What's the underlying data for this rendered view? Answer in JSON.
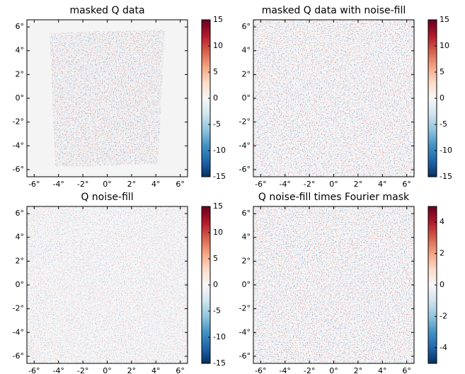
{
  "chart_data": [
    {
      "type": "heatmap",
      "title": "masked Q data",
      "xlim": [
        -6.6,
        6.6
      ],
      "ylim": [
        -6.6,
        6.6
      ],
      "xticks": [
        {
          "value": -6,
          "label": "-6°"
        },
        {
          "value": -4,
          "label": "-4°"
        },
        {
          "value": -2,
          "label": "-2°"
        },
        {
          "value": 0,
          "label": "0°"
        },
        {
          "value": 2,
          "label": "2°"
        },
        {
          "value": 4,
          "label": "4°"
        },
        {
          "value": 6,
          "label": "6°"
        }
      ],
      "yticks": [
        {
          "value": -6,
          "label": "-6°"
        },
        {
          "value": -4,
          "label": "-4°"
        },
        {
          "value": -2,
          "label": "-2°"
        },
        {
          "value": 0,
          "label": "0°"
        },
        {
          "value": 2,
          "label": "2°"
        },
        {
          "value": 4,
          "label": "4°"
        },
        {
          "value": 6,
          "label": "6°"
        }
      ],
      "clim": [
        -15,
        15
      ],
      "cticks": [
        -15,
        -10,
        -5,
        0,
        5,
        10,
        15
      ],
      "colormap": [
        "#053061",
        "#2166ac",
        "#4393c3",
        "#92c5de",
        "#d1e5f0",
        "#f7f7f7",
        "#fddbc7",
        "#f4a582",
        "#d6604d",
        "#b2182b",
        "#67001f"
      ]
    },
    {
      "type": "heatmap",
      "title": "masked Q data with noise-fill",
      "xlim": [
        -6.6,
        6.6
      ],
      "ylim": [
        -6.6,
        6.6
      ],
      "xticks": [
        {
          "value": -6,
          "label": "-6°"
        },
        {
          "value": -4,
          "label": "-4°"
        },
        {
          "value": -2,
          "label": "-2°"
        },
        {
          "value": 0,
          "label": "0°"
        },
        {
          "value": 2,
          "label": "2°"
        },
        {
          "value": 4,
          "label": "4°"
        },
        {
          "value": 6,
          "label": "6°"
        }
      ],
      "yticks": [
        {
          "value": -6,
          "label": "-6°"
        },
        {
          "value": -4,
          "label": "-4°"
        },
        {
          "value": -2,
          "label": "-2°"
        },
        {
          "value": 0,
          "label": "0°"
        },
        {
          "value": 2,
          "label": "2°"
        },
        {
          "value": 4,
          "label": "4°"
        },
        {
          "value": 6,
          "label": "6°"
        }
      ],
      "clim": [
        -15,
        15
      ],
      "cticks": [
        -15,
        -10,
        -5,
        0,
        5,
        10,
        15
      ],
      "colormap": [
        "#053061",
        "#2166ac",
        "#4393c3",
        "#92c5de",
        "#d1e5f0",
        "#f7f7f7",
        "#fddbc7",
        "#f4a582",
        "#d6604d",
        "#b2182b",
        "#67001f"
      ]
    },
    {
      "type": "heatmap",
      "title": "Q noise-fill",
      "xlim": [
        -6.6,
        6.6
      ],
      "ylim": [
        -6.6,
        6.6
      ],
      "xticks": [
        {
          "value": -6,
          "label": "-6°"
        },
        {
          "value": -4,
          "label": "-4°"
        },
        {
          "value": -2,
          "label": "-2°"
        },
        {
          "value": 0,
          "label": "0°"
        },
        {
          "value": 2,
          "label": "2°"
        },
        {
          "value": 4,
          "label": "4°"
        },
        {
          "value": 6,
          "label": "6°"
        }
      ],
      "yticks": [
        {
          "value": -6,
          "label": "-6°"
        },
        {
          "value": -4,
          "label": "-4°"
        },
        {
          "value": -2,
          "label": "-2°"
        },
        {
          "value": 0,
          "label": "0°"
        },
        {
          "value": 2,
          "label": "2°"
        },
        {
          "value": 4,
          "label": "4°"
        },
        {
          "value": 6,
          "label": "6°"
        }
      ],
      "clim": [
        -15,
        15
      ],
      "cticks": [
        -15,
        -10,
        -5,
        0,
        5,
        10,
        15
      ],
      "colormap": [
        "#053061",
        "#2166ac",
        "#4393c3",
        "#92c5de",
        "#d1e5f0",
        "#f7f7f7",
        "#fddbc7",
        "#f4a582",
        "#d6604d",
        "#b2182b",
        "#67001f"
      ]
    },
    {
      "type": "heatmap",
      "title": "Q noise-fill times Fourier mask",
      "xlim": [
        -6.6,
        6.6
      ],
      "ylim": [
        -6.6,
        6.6
      ],
      "xticks": [
        {
          "value": -6,
          "label": "-6°"
        },
        {
          "value": -4,
          "label": "-4°"
        },
        {
          "value": -2,
          "label": "-2°"
        },
        {
          "value": 0,
          "label": "0°"
        },
        {
          "value": 2,
          "label": "2°"
        },
        {
          "value": 4,
          "label": "4°"
        },
        {
          "value": 6,
          "label": "6°"
        }
      ],
      "yticks": [
        {
          "value": -6,
          "label": "-6°"
        },
        {
          "value": -4,
          "label": "-4°"
        },
        {
          "value": -2,
          "label": "-2°"
        },
        {
          "value": 0,
          "label": "0°"
        },
        {
          "value": 2,
          "label": "2°"
        },
        {
          "value": 4,
          "label": "4°"
        },
        {
          "value": 6,
          "label": "6°"
        }
      ],
      "clim": [
        -5,
        5
      ],
      "cticks": [
        -4,
        -2,
        0,
        2,
        4
      ],
      "colormap": [
        "#053061",
        "#2166ac",
        "#4393c3",
        "#92c5de",
        "#d1e5f0",
        "#f7f7f7",
        "#fddbc7",
        "#f4a582",
        "#d6604d",
        "#b2182b",
        "#67001f"
      ]
    }
  ]
}
